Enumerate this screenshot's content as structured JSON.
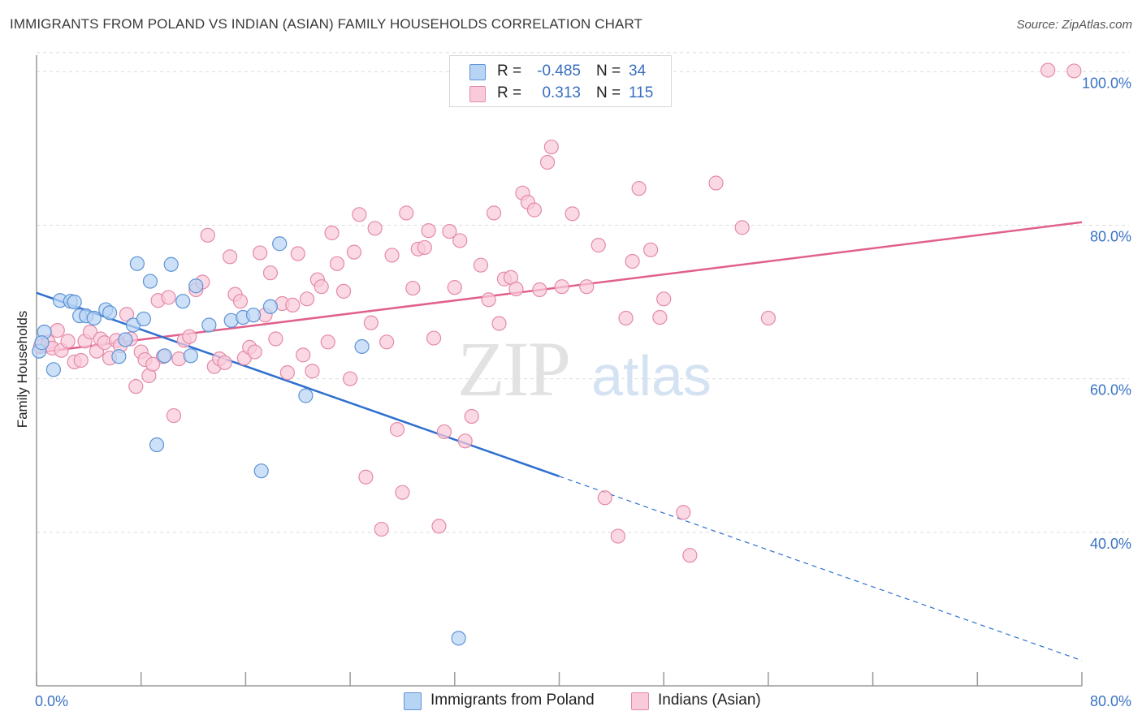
{
  "title": "IMMIGRANTS FROM POLAND VS INDIAN (ASIAN) FAMILY HOUSEHOLDS CORRELATION CHART",
  "source": "Source: ZipAtlas.com",
  "watermark": {
    "zip": "ZIP",
    "atlas": "atlas"
  },
  "colors": {
    "blue_fill": "#b8d4f4",
    "blue_stroke": "#5d93d6",
    "blue_line": "#2e6fcf",
    "pink_fill": "#f9cada",
    "pink_stroke": "#e48aa8",
    "pink_line": "#e0608b",
    "tick_text": "#3a73c4",
    "grid": "#dcdcdc"
  },
  "stats": {
    "rows": [
      {
        "r_label": "R =",
        "r_value": "-0.485",
        "n_label": "N =",
        "n_value": "34"
      },
      {
        "r_label": "R =",
        "r_value": "0.313",
        "n_label": "N =",
        "n_value": "115"
      }
    ]
  },
  "legend": {
    "items": [
      "Immigrants from Poland",
      "Indians (Asian)"
    ]
  },
  "chart_data": {
    "type": "scatter",
    "title": "IMMIGRANTS FROM POLAND VS INDIAN (ASIAN) FAMILY HOUSEHOLDS CORRELATION CHART",
    "xlabel": "",
    "ylabel": "Family Households",
    "xlim": [
      0,
      80
    ],
    "ylim": [
      20,
      103
    ],
    "x_tick_labels": [
      "0.0%",
      "80.0%"
    ],
    "y_ticks": [
      40,
      60,
      80,
      100
    ],
    "y_tick_labels": [
      "40.0%",
      "60.0%",
      "80.0%",
      "100.0%"
    ],
    "grid": true,
    "legend_position": "bottom-center",
    "series": [
      {
        "name": "Immigrants from Poland",
        "color": "#5d93d6",
        "trend": {
          "x": [
            0,
            40
          ],
          "y": [
            71.2,
            47.3
          ],
          "dashed_extension_to": [
            80,
            23.3
          ]
        },
        "points": [
          [
            0.2,
            63.6
          ],
          [
            0.6,
            66.1
          ],
          [
            1.3,
            61.2
          ],
          [
            1.8,
            70.2
          ],
          [
            2.6,
            70.1
          ],
          [
            2.9,
            70.0
          ],
          [
            3.3,
            68.2
          ],
          [
            3.8,
            68.2
          ],
          [
            4.4,
            67.9
          ],
          [
            5.3,
            69.0
          ],
          [
            5.6,
            68.6
          ],
          [
            6.3,
            62.9
          ],
          [
            6.8,
            65.1
          ],
          [
            7.4,
            67.0
          ],
          [
            7.7,
            75.0
          ],
          [
            8.2,
            67.8
          ],
          [
            8.7,
            72.7
          ],
          [
            9.2,
            51.4
          ],
          [
            9.8,
            63.0
          ],
          [
            10.3,
            74.9
          ],
          [
            11.2,
            70.1
          ],
          [
            11.8,
            63.0
          ],
          [
            12.2,
            72.1
          ],
          [
            13.2,
            67.0
          ],
          [
            14.9,
            67.6
          ],
          [
            15.8,
            68.0
          ],
          [
            16.6,
            68.3
          ],
          [
            17.2,
            48.0
          ],
          [
            17.9,
            69.4
          ],
          [
            18.6,
            77.6
          ],
          [
            20.6,
            57.8
          ],
          [
            24.9,
            64.2
          ],
          [
            32.3,
            26.2
          ],
          [
            0.4,
            64.7
          ]
        ]
      },
      {
        "name": "Indians (Asian)",
        "color": "#e48aa8",
        "trend": {
          "x": [
            0,
            80
          ],
          "y": [
            63.4,
            80.4
          ]
        },
        "points": [
          [
            0.3,
            64.2
          ],
          [
            0.9,
            64.8
          ],
          [
            1.2,
            64.0
          ],
          [
            1.6,
            66.3
          ],
          [
            1.9,
            63.7
          ],
          [
            2.4,
            64.9
          ],
          [
            2.9,
            62.2
          ],
          [
            3.4,
            62.4
          ],
          [
            3.7,
            64.9
          ],
          [
            4.1,
            66.1
          ],
          [
            4.6,
            63.6
          ],
          [
            4.9,
            65.2
          ],
          [
            5.2,
            64.7
          ],
          [
            5.6,
            62.7
          ],
          [
            6.1,
            65.0
          ],
          [
            6.4,
            64.3
          ],
          [
            6.9,
            68.4
          ],
          [
            7.2,
            65.2
          ],
          [
            7.6,
            59.0
          ],
          [
            8.0,
            63.5
          ],
          [
            8.3,
            62.5
          ],
          [
            8.6,
            60.4
          ],
          [
            8.9,
            61.9
          ],
          [
            9.3,
            70.2
          ],
          [
            9.7,
            62.9
          ],
          [
            10.1,
            70.6
          ],
          [
            10.5,
            55.2
          ],
          [
            10.9,
            62.6
          ],
          [
            11.3,
            65.0
          ],
          [
            11.7,
            65.5
          ],
          [
            12.2,
            71.6
          ],
          [
            12.7,
            72.6
          ],
          [
            13.1,
            78.7
          ],
          [
            13.6,
            61.6
          ],
          [
            14.0,
            62.6
          ],
          [
            14.4,
            62.1
          ],
          [
            14.8,
            75.9
          ],
          [
            15.2,
            71.0
          ],
          [
            15.6,
            70.1
          ],
          [
            15.9,
            62.7
          ],
          [
            16.3,
            64.1
          ],
          [
            16.7,
            63.5
          ],
          [
            17.1,
            76.4
          ],
          [
            17.5,
            68.3
          ],
          [
            17.9,
            73.8
          ],
          [
            18.3,
            65.2
          ],
          [
            18.8,
            69.8
          ],
          [
            19.2,
            60.8
          ],
          [
            19.6,
            69.6
          ],
          [
            20.0,
            76.3
          ],
          [
            20.4,
            63.1
          ],
          [
            20.7,
            70.4
          ],
          [
            21.1,
            61.0
          ],
          [
            21.5,
            72.9
          ],
          [
            21.8,
            72.0
          ],
          [
            22.3,
            64.8
          ],
          [
            22.6,
            79.0
          ],
          [
            23.0,
            75.0
          ],
          [
            23.5,
            71.4
          ],
          [
            24.0,
            60.0
          ],
          [
            24.3,
            76.5
          ],
          [
            24.7,
            81.4
          ],
          [
            25.2,
            47.2
          ],
          [
            25.6,
            67.3
          ],
          [
            25.9,
            79.6
          ],
          [
            26.4,
            40.4
          ],
          [
            26.8,
            64.8
          ],
          [
            27.2,
            76.1
          ],
          [
            27.6,
            53.4
          ],
          [
            28.0,
            45.2
          ],
          [
            28.3,
            81.6
          ],
          [
            28.8,
            71.8
          ],
          [
            29.2,
            76.9
          ],
          [
            29.7,
            77.1
          ],
          [
            30.0,
            79.3
          ],
          [
            30.4,
            65.3
          ],
          [
            30.8,
            40.8
          ],
          [
            31.2,
            53.1
          ],
          [
            31.6,
            79.2
          ],
          [
            32.0,
            71.9
          ],
          [
            32.4,
            78.0
          ],
          [
            32.8,
            51.9
          ],
          [
            33.3,
            55.1
          ],
          [
            34.0,
            74.8
          ],
          [
            34.6,
            70.3
          ],
          [
            35.0,
            81.6
          ],
          [
            35.4,
            67.2
          ],
          [
            35.8,
            73.0
          ],
          [
            36.3,
            73.2
          ],
          [
            36.7,
            71.7
          ],
          [
            37.2,
            84.2
          ],
          [
            37.6,
            83.0
          ],
          [
            38.1,
            82.0
          ],
          [
            38.5,
            71.6
          ],
          [
            39.1,
            88.2
          ],
          [
            39.4,
            90.2
          ],
          [
            40.2,
            72.0
          ],
          [
            41.0,
            81.5
          ],
          [
            42.1,
            72.0
          ],
          [
            43.0,
            77.4
          ],
          [
            43.5,
            44.5
          ],
          [
            44.5,
            39.5
          ],
          [
            45.1,
            67.9
          ],
          [
            45.6,
            75.3
          ],
          [
            46.1,
            84.8
          ],
          [
            47.0,
            76.8
          ],
          [
            47.7,
            68.0
          ],
          [
            48.0,
            70.4
          ],
          [
            49.5,
            42.6
          ],
          [
            50.0,
            37.0
          ],
          [
            52.0,
            85.5
          ],
          [
            54.0,
            79.7
          ],
          [
            56.0,
            67.9
          ],
          [
            77.4,
            100.2
          ],
          [
            79.4,
            100.1
          ]
        ]
      }
    ]
  }
}
